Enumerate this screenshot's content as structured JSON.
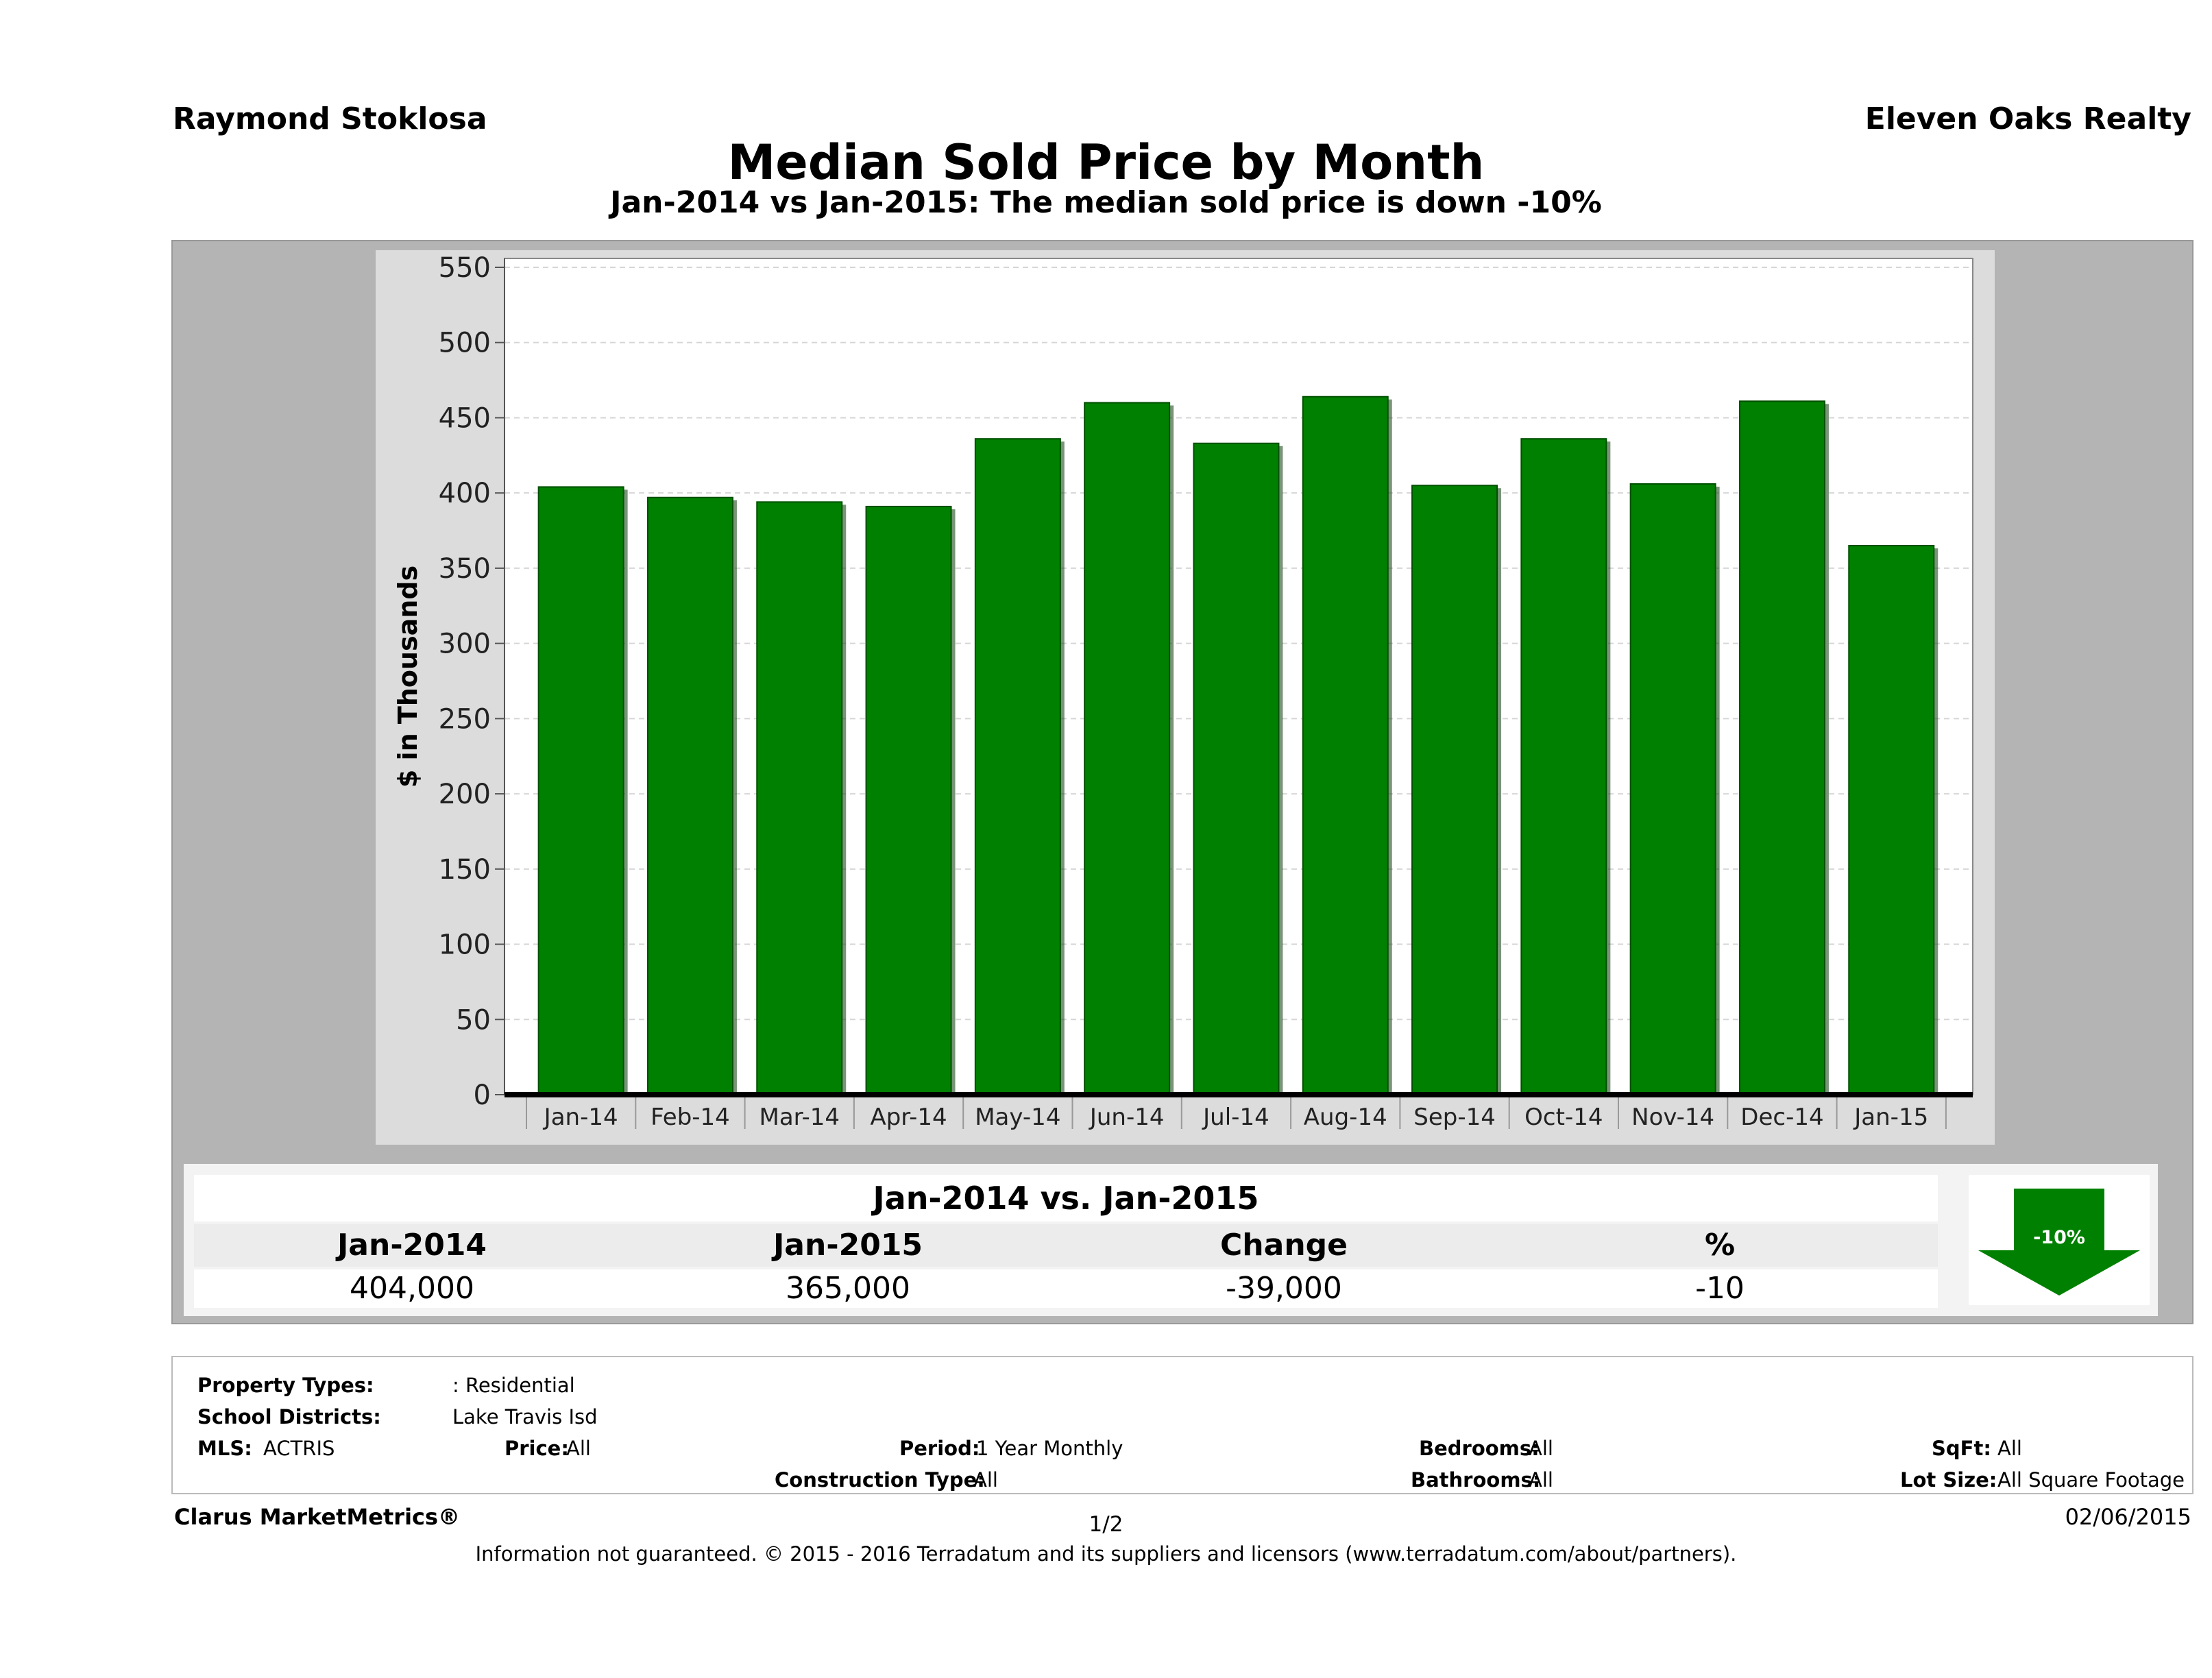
{
  "header": {
    "agent": "Raymond Stoklosa",
    "broker": "Eleven Oaks Realty",
    "title": "Median Sold Price by Month",
    "subtitle": "Jan-2014 vs Jan-2015: The median sold price is down -10%"
  },
  "chart_data": {
    "type": "bar",
    "categories": [
      "Jan-14",
      "Feb-14",
      "Mar-14",
      "Apr-14",
      "May-14",
      "Jun-14",
      "Jul-14",
      "Aug-14",
      "Sep-14",
      "Oct-14",
      "Nov-14",
      "Dec-14",
      "Jan-15"
    ],
    "values": [
      404,
      397,
      394,
      391,
      436,
      460,
      433,
      464,
      405,
      436,
      406,
      461,
      365
    ],
    "ylabel": "$ in Thousands",
    "ylim": [
      0,
      550
    ],
    "yticks": [
      0,
      50,
      100,
      150,
      200,
      250,
      300,
      350,
      400,
      450,
      500,
      550
    ],
    "grid": true,
    "bar_color": "#008000"
  },
  "summary": {
    "heading": "Jan-2014 vs. Jan-2015",
    "labels": [
      "Jan-2014",
      "Jan-2015",
      "Change",
      "%"
    ],
    "values": [
      "404,000",
      "365,000",
      "-39,000",
      "-10"
    ],
    "badge": "-10%",
    "badge_color": "#008000"
  },
  "filters": {
    "property_types_label": "Property Types:",
    "property_types": ": Residential",
    "school_districts_label": "School Districts:",
    "school_districts": "Lake Travis Isd",
    "mls_label": "MLS:",
    "mls": "ACTRIS",
    "price_label": "Price:",
    "price": "All",
    "period_label": "Period:",
    "period": "1 Year Monthly",
    "construction_label": "Construction Type:",
    "construction": "All",
    "bedrooms_label": "Bedrooms:",
    "bedrooms": "All",
    "bathrooms_label": "Bathrooms:",
    "bathrooms": "All",
    "sqft_label": "SqFt:",
    "sqft": "All",
    "lot_label": "Lot Size:",
    "lot": "All Square Footage"
  },
  "footer": {
    "brand": "Clarus MarketMetrics®",
    "page": "1/2",
    "date": "02/06/2015",
    "note": "Information not guaranteed. © 2015 - 2016 Terradatum and its suppliers and licensors (www.terradatum.com/about/partners)."
  }
}
